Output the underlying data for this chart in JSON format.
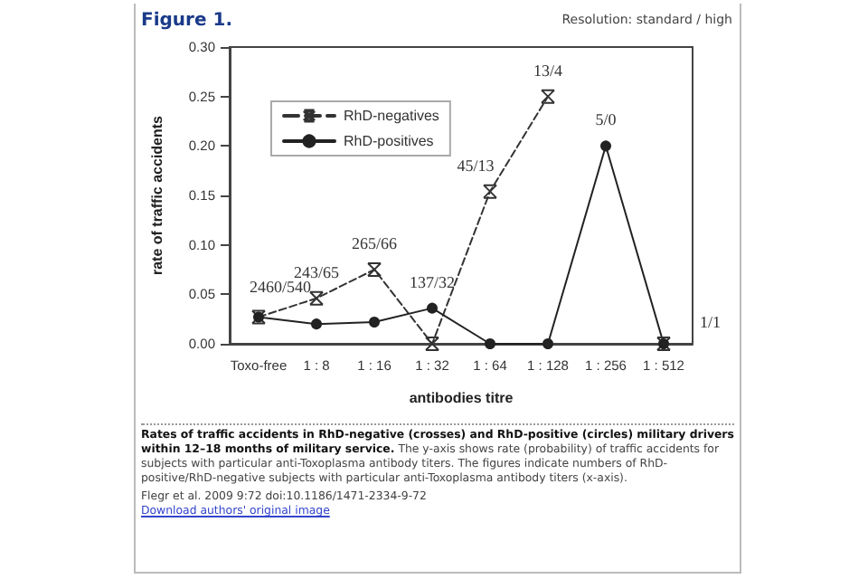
{
  "chart_data": {
    "type": "line",
    "title": "Figure 1.",
    "xlabel": "antibodies titre",
    "ylabel": "rate of traffic accidents",
    "categories": [
      "Toxo-free",
      "1 : 8",
      "1 : 16",
      "1 : 32",
      "1 : 64",
      "1 : 128",
      "1 : 256",
      "1 : 512"
    ],
    "series": [
      {
        "name": "RhD-negatives",
        "color": "#333333",
        "marker": "cross",
        "line_style": "dashed",
        "values": [
          0.027,
          0.046,
          0.075,
          0,
          0.154,
          0.25,
          null,
          0
        ]
      },
      {
        "name": "RhD-positives",
        "color": "#222222",
        "marker": "circle",
        "line_style": "solid",
        "values": [
          0.027,
          0.02,
          0.022,
          0.036,
          0,
          0,
          0.2,
          0
        ]
      }
    ],
    "ylim": [
      0,
      0.3
    ],
    "yticks": [
      {
        "value": 0,
        "label": "0.00"
      },
      {
        "value": 0.05,
        "label": "0.05"
      },
      {
        "value": 0.1,
        "label": "0.10"
      },
      {
        "value": 0.15,
        "label": "0.15"
      },
      {
        "value": 0.2,
        "label": "0.20"
      },
      {
        "value": 0.25,
        "label": "0.25"
      },
      {
        "value": 0.3,
        "label": "0.30"
      }
    ],
    "grid": false,
    "legend": "top left",
    "annotations": [
      "Resolution: standard / high",
      "Rates of traffic accidents in RhD-negative (crosses) and RhD-positive (circles) military drivers within 12–18 months of military service.",
      "The y-axis shows rate (probability) of traffic accidents for subjects with particular anti-Toxoplasma antibody titers. The figures indicate numbers of RhD-positive/RhD-negative subjects with particular anti-Toxoplasma antibody titers (x-axis).",
      "Flegr et al. 2009 9:72 doi:10.1186/1471-2334-9-72",
      "Download authors' original image",
      {
        "text": "2460/540",
        "x": "Toxo-free",
        "y": 0.027
      },
      {
        "text": "243/65",
        "x": "1 : 8",
        "y": 0.046
      },
      {
        "text": "265/66",
        "x": "1 : 16",
        "y": 0.075
      },
      {
        "text": "137/32",
        "x": "1 : 32",
        "y": 0.036
      },
      {
        "text": "45/13",
        "x": "1 : 64",
        "y": 0.154
      },
      {
        "text": "13/4",
        "x": "1 : 128",
        "y": 0.25
      },
      {
        "text": "5/0",
        "x": "1 : 256",
        "y": 0.2
      },
      {
        "text": "1/1",
        "x": "1 : 512",
        "y": 0
      }
    ]
  }
}
